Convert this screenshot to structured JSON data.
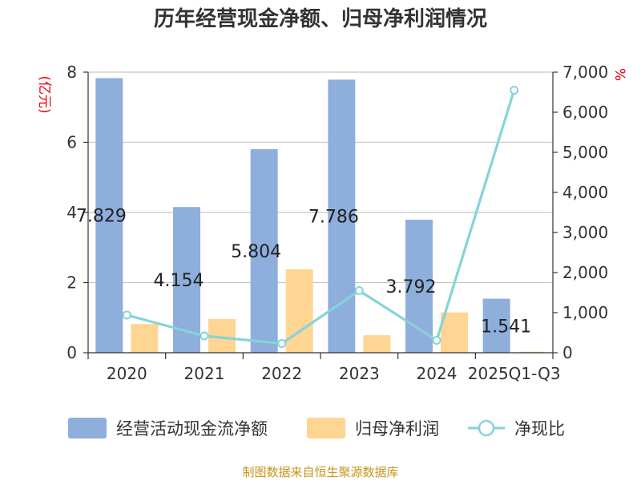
{
  "chart_data": {
    "type": "bar",
    "title": "历年经营现金净额、归母净利润情况",
    "categories": [
      "2020",
      "2021",
      "2022",
      "2023",
      "2024",
      "2025Q1-Q3"
    ],
    "left_axis": {
      "unit": "(亿元)",
      "ylim": [
        0,
        8
      ],
      "ticks": [
        "0",
        "2",
        "4",
        "6",
        "8"
      ]
    },
    "right_axis": {
      "unit": "%",
      "ylim": [
        0,
        7000
      ],
      "ticks": [
        "0",
        "1,000",
        "2,000",
        "3,000",
        "4,000",
        "5,000",
        "6,000",
        "7,000"
      ]
    },
    "series": [
      {
        "name": "经营活动现金流净额",
        "type": "bar",
        "axis": "left",
        "color": "#8eaedc",
        "values": [
          7.829,
          4.154,
          5.804,
          7.786,
          3.792,
          1.541
        ],
        "labels": [
          "7.829",
          "4.154",
          "5.804",
          "7.786",
          "3.792",
          "1.541"
        ]
      },
      {
        "name": "归母净利润",
        "type": "bar",
        "axis": "left",
        "color": "#fed593",
        "values": [
          0.82,
          0.96,
          2.38,
          0.5,
          1.15,
          0.03
        ]
      },
      {
        "name": "净现比",
        "type": "line",
        "axis": "right",
        "color": "#86d3d9",
        "values": [
          940,
          420,
          230,
          1550,
          310,
          6550
        ]
      }
    ],
    "grid": true,
    "legend_position": "bottom"
  },
  "footer": {
    "source": "制图数据来自恒生聚源数据库"
  }
}
